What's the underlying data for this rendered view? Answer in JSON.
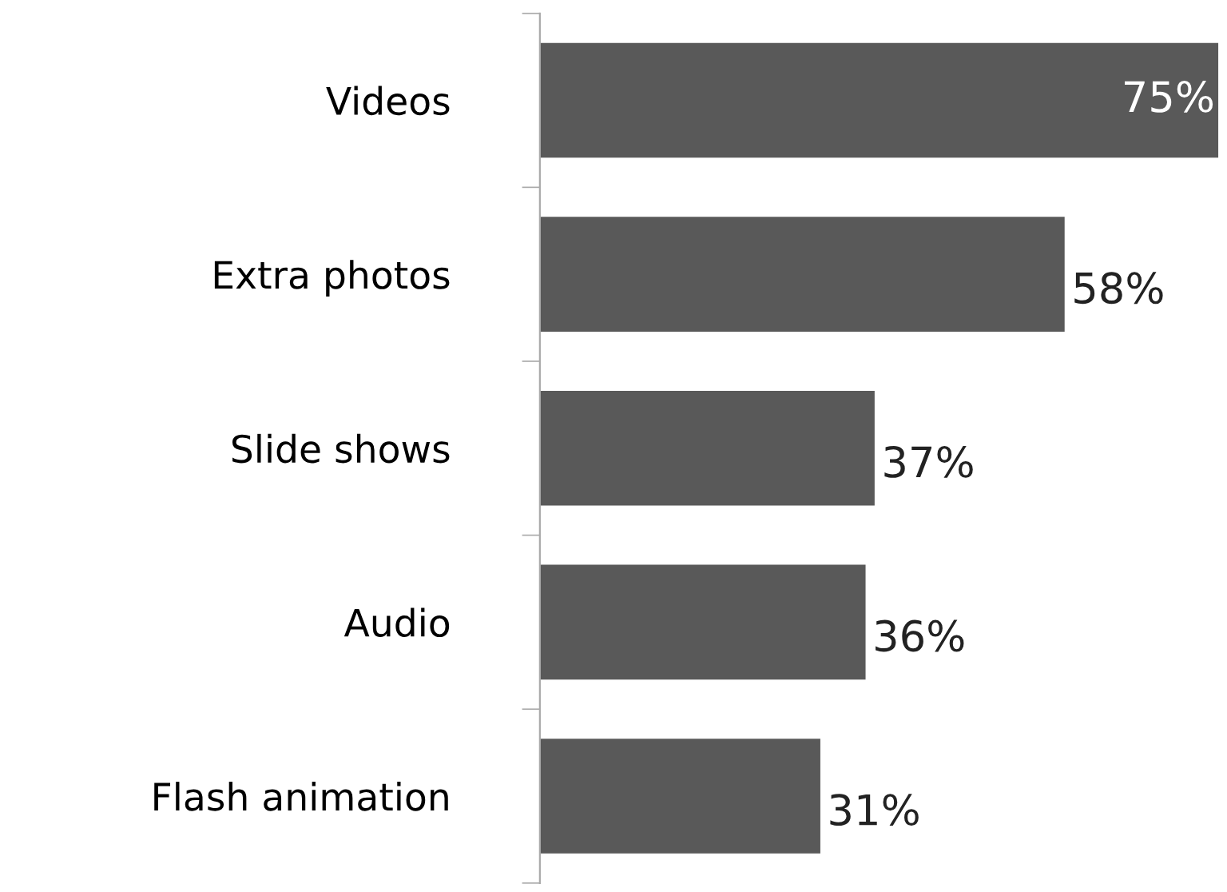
{
  "chart_data": {
    "type": "bar",
    "orientation": "horizontal",
    "categories": [
      "Videos",
      "Extra photos",
      "Slide shows",
      "Audio",
      "Flash animation"
    ],
    "values": [
      75,
      58,
      37,
      36,
      31
    ],
    "value_labels": [
      "75%",
      "58%",
      "37%",
      "36%",
      "31%"
    ],
    "color": "#595959",
    "grid": false,
    "legend": false
  }
}
